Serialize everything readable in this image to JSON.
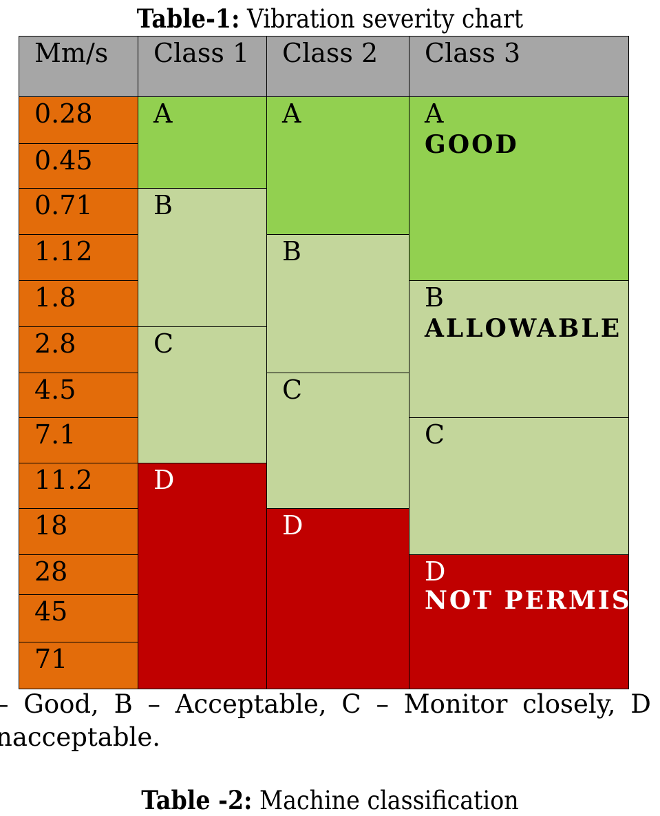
{
  "table1": {
    "caption_label": "Table-1:",
    "caption_text": " Vibration severity chart",
    "headers": [
      "Mm/s",
      "Class 1",
      "Class 2",
      "Class 3"
    ],
    "speeds": [
      "0.28",
      "0.45",
      "0.71",
      "1.12",
      "1.8",
      "2.8",
      "4.5",
      "7.1",
      "11.2",
      "18",
      "28",
      "45",
      "71"
    ],
    "class1": [
      {
        "grade": "A"
      },
      {
        "grade": "B"
      },
      {
        "grade": "C"
      },
      {
        "grade": "D"
      }
    ],
    "class2": [
      {
        "grade": "A"
      },
      {
        "grade": "B"
      },
      {
        "grade": "C"
      },
      {
        "grade": "D"
      }
    ],
    "class3": [
      {
        "grade": "A",
        "desc": "GOOD"
      },
      {
        "grade": "B",
        "desc": "ALLOWABLE"
      },
      {
        "grade": "C"
      },
      {
        "grade": "D",
        "desc": "NOT PERMISSABLE"
      }
    ],
    "colors": {
      "header": "#a6a6a6",
      "speed": "#e36c0a",
      "good": "#92d050",
      "acceptable": "#c3d69b",
      "unacceptable": "#c00000"
    }
  },
  "legend_note": {
    "line1": " – Good, B – Acceptable, C – Monitor closely, D –",
    "line2": "nacceptable."
  },
  "table2": {
    "caption_label": "Table -2:",
    "caption_text": " Machine classification"
  }
}
